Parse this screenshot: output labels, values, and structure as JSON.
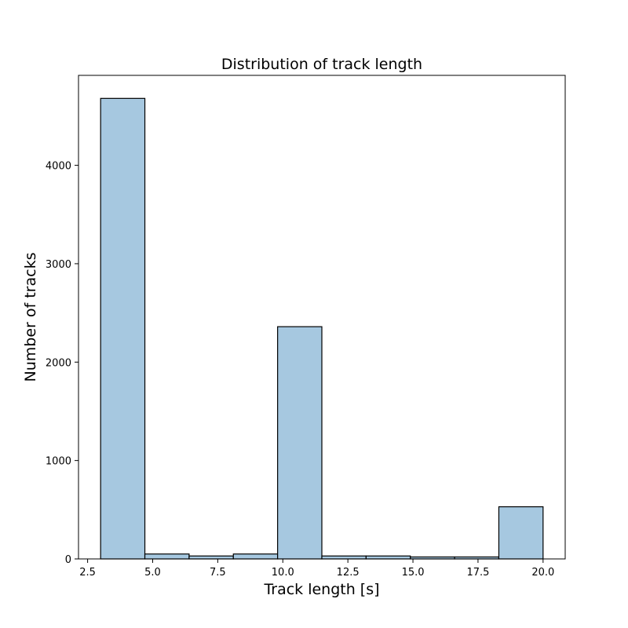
{
  "chart_data": {
    "type": "bar",
    "title": "Distribution of track length",
    "xlabel": "Track length [s]",
    "ylabel": "Number of tracks",
    "bin_edges": [
      3.0,
      4.7,
      6.4,
      8.1,
      9.8,
      11.5,
      13.2,
      14.9,
      16.6,
      18.3,
      20.0
    ],
    "values": [
      4680,
      50,
      30,
      50,
      2360,
      30,
      30,
      20,
      20,
      530
    ],
    "xlim": [
      2.15,
      20.85
    ],
    "ylim": [
      0,
      4914
    ],
    "xticks": [
      2.5,
      5.0,
      7.5,
      10.0,
      12.5,
      15.0,
      17.5,
      20.0
    ],
    "xtick_labels": [
      "2.5",
      "5.0",
      "7.5",
      "10.0",
      "12.5",
      "15.0",
      "17.5",
      "20.0"
    ],
    "yticks": [
      0,
      1000,
      2000,
      3000,
      4000
    ],
    "ytick_labels": [
      "0",
      "1000",
      "2000",
      "3000",
      "4000"
    ],
    "bar_color": "#a6c8e0",
    "edge_color": "#000000",
    "grid": false,
    "legend": "none"
  }
}
